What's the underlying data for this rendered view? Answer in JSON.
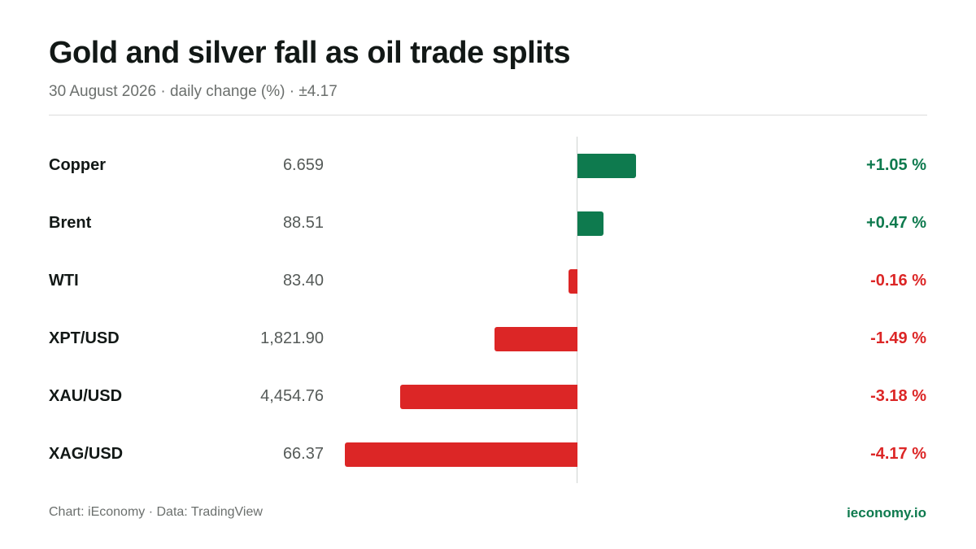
{
  "header": {
    "title": "Gold and silver fall as oil trade splits",
    "subtitle": "30 August 2026 · daily change (%) · ±4.17"
  },
  "footer": {
    "source": "Chart: iEconomy · Data: TradingView",
    "brand": "ieconomy.io"
  },
  "colors": {
    "positive": "#0e7a4e",
    "negative": "#dc2626"
  },
  "chart_data": {
    "type": "bar",
    "orientation": "horizontal-diverging",
    "title": "Gold and silver fall as oil trade splits",
    "subtitle": "30 August 2026 · daily change (%) · ±4.17",
    "xlim": [
      -4.17,
      4.17
    ],
    "categories": [
      "Copper",
      "Brent",
      "WTI",
      "XPT/USD",
      "XAU/USD",
      "XAG/USD"
    ],
    "prices": [
      "6.659",
      "88.51",
      "83.40",
      "1,821.90",
      "4,454.76",
      "66.37"
    ],
    "values": [
      1.05,
      0.47,
      -0.16,
      -1.49,
      -3.18,
      -4.17
    ],
    "value_labels": [
      "+1.05 %",
      "+0.47 %",
      "-0.16 %",
      "-1.49 %",
      "-3.18 %",
      "-4.17 %"
    ]
  }
}
